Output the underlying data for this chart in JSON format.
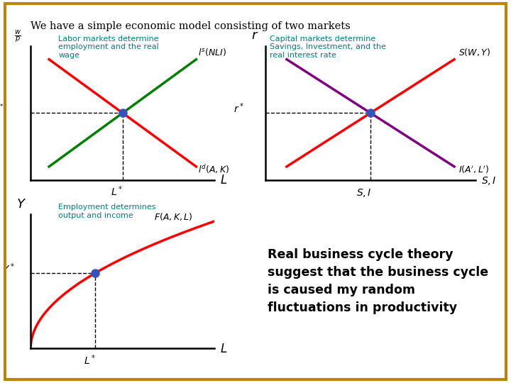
{
  "title": "We have a simple economic model consisting of two markets",
  "title_fontsize": 10.5,
  "bg_color": "#FFFFFF",
  "border_color": "#B8860B",
  "labor_label": "Labor markets determine\nemployment and the real\nwage",
  "capital_label": "Capital markets determine\nSavings, Investment, and the\nreal interest rate",
  "employment_label": "Employment determines\noutput and income",
  "rbc_text": "Real business cycle theory\nsuggest that the business cycle\nis caused my random\nfluctuations in productivity",
  "teal_color": "#008080",
  "label_fontsize": 8.0,
  "blue_dot": "#3355BB"
}
